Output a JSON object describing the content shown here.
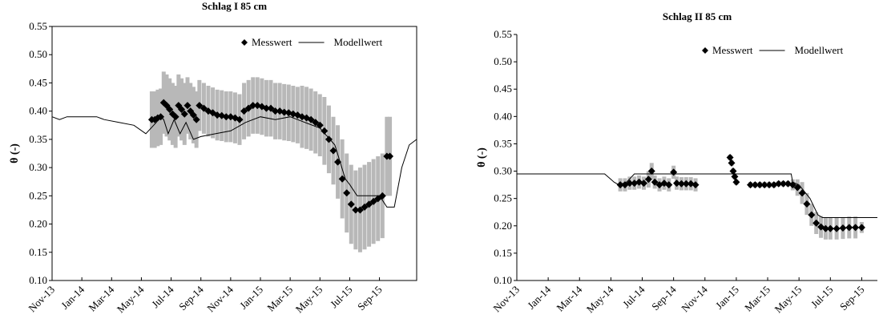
{
  "chart_data": [
    {
      "type": "line",
      "title": "Schlag I 85 cm",
      "y_label": "θ (-)",
      "frame": true,
      "legend": "top-right",
      "xlim": [
        0,
        24.5
      ],
      "ylim": [
        0.1,
        0.55
      ],
      "xticks": [
        {
          "value": 0,
          "label": "Nov-13"
        },
        {
          "value": 2,
          "label": "Jan-14"
        },
        {
          "value": 4,
          "label": "Mar-14"
        },
        {
          "value": 6,
          "label": "May-14"
        },
        {
          "value": 8,
          "label": "Jul-14"
        },
        {
          "value": 10,
          "label": "Sep-14"
        },
        {
          "value": 12,
          "label": "Nov-14"
        },
        {
          "value": 14,
          "label": "Jan-15"
        },
        {
          "value": 16,
          "label": "Mar-15"
        },
        {
          "value": 18,
          "label": "May-15"
        },
        {
          "value": 20,
          "label": "Jul-15"
        },
        {
          "value": 22,
          "label": "Sep-15"
        }
      ],
      "yticks": [
        {
          "value": 0.1,
          "label": "0.10"
        },
        {
          "value": 0.15,
          "label": "0.15"
        },
        {
          "value": 0.2,
          "label": "0.20"
        },
        {
          "value": 0.25,
          "label": "0.25"
        },
        {
          "value": 0.3,
          "label": "0.30"
        },
        {
          "value": 0.35,
          "label": "0.35"
        },
        {
          "value": 0.4,
          "label": "0.40"
        },
        {
          "value": 0.45,
          "label": "0.45"
        },
        {
          "value": 0.5,
          "label": "0.50"
        },
        {
          "value": 0.55,
          "label": "0.55"
        }
      ],
      "series": [
        {
          "name": "Messwert",
          "color": "#000000",
          "marker": "diamond",
          "error_color": "#b8b8b8",
          "x": [
            6.7,
            6.9,
            7.1,
            7.3,
            7.5,
            7.7,
            7.9,
            8.1,
            8.3,
            8.5,
            8.7,
            8.9,
            9.1,
            9.3,
            9.5,
            9.7,
            9.9,
            10.2,
            10.5,
            10.8,
            11.1,
            11.4,
            11.7,
            12.0,
            12.3,
            12.6,
            12.9,
            13.2,
            13.5,
            13.8,
            14.1,
            14.4,
            14.7,
            15.0,
            15.3,
            15.6,
            15.9,
            16.2,
            16.5,
            16.8,
            17.1,
            17.4,
            17.7,
            18.0,
            18.3,
            18.6,
            18.9,
            19.2,
            19.5,
            19.8,
            20.1,
            20.4,
            20.7,
            21.0,
            21.3,
            21.6,
            21.9,
            22.2,
            22.5,
            22.7
          ],
          "values": [
            0.385,
            0.385,
            0.388,
            0.39,
            0.415,
            0.41,
            0.403,
            0.395,
            0.39,
            0.41,
            0.403,
            0.395,
            0.41,
            0.4,
            0.393,
            0.385,
            0.41,
            0.405,
            0.4,
            0.397,
            0.393,
            0.392,
            0.39,
            0.39,
            0.388,
            0.385,
            0.4,
            0.405,
            0.41,
            0.41,
            0.408,
            0.405,
            0.405,
            0.4,
            0.4,
            0.398,
            0.397,
            0.395,
            0.393,
            0.39,
            0.388,
            0.385,
            0.38,
            0.375,
            0.365,
            0.35,
            0.33,
            0.31,
            0.28,
            0.255,
            0.235,
            0.225,
            0.225,
            0.23,
            0.235,
            0.24,
            0.245,
            0.25,
            0.32,
            0.32
          ],
          "errors": [
            0.05,
            0.05,
            0.05,
            0.05,
            0.055,
            0.055,
            0.055,
            0.055,
            0.055,
            0.055,
            0.055,
            0.055,
            0.05,
            0.05,
            0.05,
            0.05,
            0.045,
            0.045,
            0.045,
            0.045,
            0.045,
            0.045,
            0.045,
            0.045,
            0.045,
            0.045,
            0.05,
            0.05,
            0.05,
            0.05,
            0.05,
            0.05,
            0.05,
            0.05,
            0.05,
            0.05,
            0.05,
            0.05,
            0.05,
            0.055,
            0.055,
            0.055,
            0.055,
            0.055,
            0.06,
            0.06,
            0.06,
            0.065,
            0.07,
            0.07,
            0.07,
            0.07,
            0.075,
            0.075,
            0.075,
            0.075,
            0.075,
            0.075,
            0.07,
            0.07
          ]
        },
        {
          "name": "Modellwert",
          "color": "#000000",
          "x": [
            0,
            0.5,
            1,
            3,
            3.5,
            4.5,
            5.5,
            6.3,
            7,
            7.3,
            7.5,
            7.8,
            8.2,
            8.6,
            9,
            9.5,
            10,
            11,
            12,
            13,
            14,
            15,
            16,
            17,
            18,
            19,
            19.7,
            20,
            20.5,
            22,
            22.5,
            23,
            23.5,
            24,
            24.5
          ],
          "values": [
            0.39,
            0.385,
            0.39,
            0.39,
            0.385,
            0.38,
            0.375,
            0.36,
            0.38,
            0.39,
            0.385,
            0.36,
            0.385,
            0.36,
            0.38,
            0.35,
            0.355,
            0.36,
            0.365,
            0.38,
            0.39,
            0.385,
            0.39,
            0.38,
            0.37,
            0.34,
            0.28,
            0.27,
            0.25,
            0.25,
            0.23,
            0.23,
            0.3,
            0.34,
            0.35
          ]
        }
      ]
    },
    {
      "type": "line",
      "title": "Schlag II 85 cm",
      "y_label": "θ (-)",
      "frame": false,
      "legend": "top-right",
      "xlim": [
        0,
        23
      ],
      "ylim": [
        0.1,
        0.55
      ],
      "xticks": [
        {
          "value": 0,
          "label": "Nov-13"
        },
        {
          "value": 2,
          "label": "Jan-14"
        },
        {
          "value": 4,
          "label": "Mar-14"
        },
        {
          "value": 6,
          "label": "May-14"
        },
        {
          "value": 8,
          "label": "Jul-14"
        },
        {
          "value": 10,
          "label": "Sep-14"
        },
        {
          "value": 12,
          "label": "Nov-14"
        },
        {
          "value": 14,
          "label": "Jan-15"
        },
        {
          "value": 16,
          "label": "Mar-15"
        },
        {
          "value": 18,
          "label": "May-15"
        },
        {
          "value": 20,
          "label": "Jul-15"
        },
        {
          "value": 22,
          "label": "Sep-15"
        }
      ],
      "yticks": [
        {
          "value": 0.1,
          "label": "0.10"
        },
        {
          "value": 0.15,
          "label": "0.15"
        },
        {
          "value": 0.2,
          "label": "0.20"
        },
        {
          "value": 0.25,
          "label": "0.25"
        },
        {
          "value": 0.3,
          "label": "0.30"
        },
        {
          "value": 0.35,
          "label": "0.35"
        },
        {
          "value": 0.4,
          "label": "0.40"
        },
        {
          "value": 0.45,
          "label": "0.45"
        },
        {
          "value": 0.5,
          "label": "0.50"
        },
        {
          "value": 0.55,
          "label": "0.55"
        }
      ],
      "series": [
        {
          "name": "Messwert",
          "color": "#000000",
          "marker": "diamond",
          "error_color": "#b8b8b8",
          "x": [
            6.6,
            6.9,
            7.2,
            7.5,
            7.8,
            8.1,
            8.4,
            8.6,
            8.8,
            9.1,
            9.4,
            9.7,
            10.0,
            10.2,
            10.5,
            10.8,
            11.1,
            11.4,
            13.6,
            13.7,
            13.8,
            13.9,
            14.0,
            14.9,
            15.2,
            15.5,
            15.8,
            16.1,
            16.4,
            16.7,
            17.0,
            17.3,
            17.6,
            17.9,
            18.2,
            18.5,
            18.8,
            19.1,
            19.4,
            19.7,
            20.0,
            20.4,
            20.8,
            21.2,
            21.6,
            22.0
          ],
          "values": [
            0.275,
            0.275,
            0.278,
            0.278,
            0.28,
            0.278,
            0.285,
            0.3,
            0.28,
            0.275,
            0.278,
            0.275,
            0.298,
            0.278,
            0.277,
            0.277,
            0.277,
            0.275,
            0.325,
            0.315,
            0.3,
            0.29,
            0.28,
            0.275,
            0.275,
            0.275,
            0.275,
            0.275,
            0.275,
            0.277,
            0.277,
            0.277,
            0.275,
            0.27,
            0.26,
            0.24,
            0.22,
            0.205,
            0.198,
            0.195,
            0.195,
            0.195,
            0.196,
            0.197,
            0.197,
            0.197
          ],
          "errors": [
            0.012,
            0.012,
            0.012,
            0.012,
            0.012,
            0.012,
            0.015,
            0.015,
            0.012,
            0.012,
            0.012,
            0.012,
            0.012,
            0.012,
            0.012,
            0.012,
            0.012,
            0.012,
            0.005,
            0.005,
            0.005,
            0.005,
            0.005,
            0.005,
            0.005,
            0.005,
            0.005,
            0.005,
            0.005,
            0.005,
            0.005,
            0.005,
            0.01,
            0.015,
            0.02,
            0.02,
            0.02,
            0.02,
            0.02,
            0.02,
            0.02,
            0.02,
            0.02,
            0.02,
            0.02,
            0.01
          ]
        },
        {
          "name": "Modellwert",
          "color": "#000000",
          "x": [
            0,
            5.6,
            6,
            6.2,
            6.5,
            7,
            7.5,
            17.5,
            17.6,
            18,
            18.7,
            19.2,
            19.5,
            23
          ],
          "values": [
            0.295,
            0.295,
            0.285,
            0.28,
            0.275,
            0.28,
            0.295,
            0.295,
            0.28,
            0.275,
            0.25,
            0.22,
            0.215,
            0.215
          ]
        }
      ]
    }
  ]
}
